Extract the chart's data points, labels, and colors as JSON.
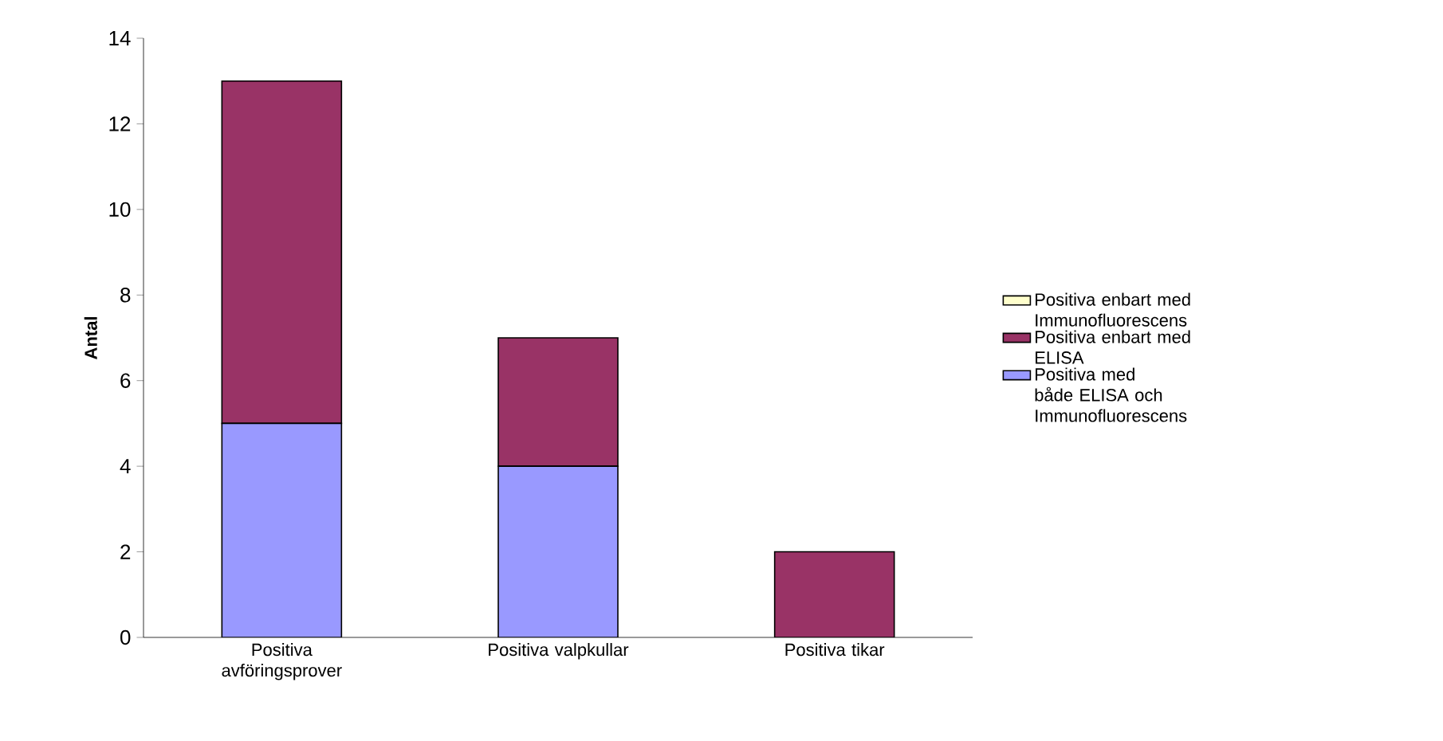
{
  "chart_data": {
    "type": "bar",
    "stacked": true,
    "ylabel": "Antal",
    "categories": [
      "Positiva avföringsprover",
      "Positiva valpkullar",
      "Positiva tikar"
    ],
    "series": [
      {
        "name": "Positiva med både ELISA och Immunofluorescens",
        "color": "#9999ff",
        "values": [
          5,
          4,
          0
        ]
      },
      {
        "name": "Positiva enbart med ELISA",
        "color": "#993366",
        "values": [
          8,
          3,
          2
        ]
      },
      {
        "name": "Positiva enbart med Immunofluorescens",
        "color": "#ffffcc",
        "values": [
          0,
          0,
          0
        ]
      }
    ],
    "ylim": [
      0,
      14
    ],
    "yticks": [
      0,
      2,
      4,
      6,
      8,
      10,
      12,
      14
    ],
    "legend": "right",
    "grid": false
  }
}
